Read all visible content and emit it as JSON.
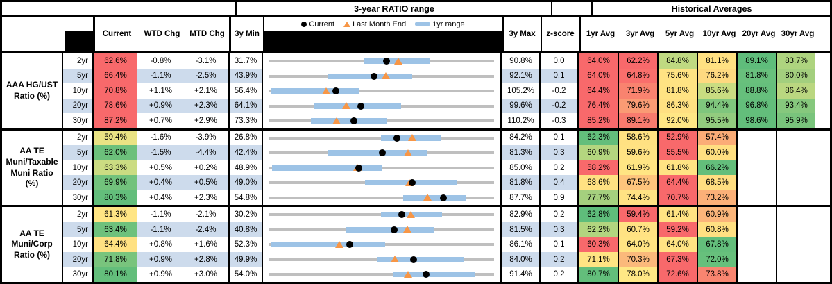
{
  "titles": {
    "chart": "3-year RATIO range",
    "averages": "Historical Averages"
  },
  "legend": {
    "current": "Current",
    "last_month": "Last Month End",
    "range": "1yr range"
  },
  "columns": {
    "current": "Current",
    "wtd": "WTD Chg",
    "mtd": "MTD Chg",
    "min": "3y Min",
    "max": "3y Max",
    "z": "z-score",
    "avgs": [
      "1yr Avg",
      "3yr Avg",
      "5yr Avg",
      "10yr Avg",
      "20yr Avg",
      "30yr Avg"
    ]
  },
  "colors": {
    "stripe": "#CDDBEC",
    "track_gray": "#BFBFBF",
    "range_blue": "#9DC3E6",
    "marker_orange": "#F79646",
    "marker_black": "#000000",
    "heat_red": "#F8696B",
    "heat_yellow": "#FFE383",
    "heat_green": "#63BE7B"
  },
  "chart_data": {
    "type": "table",
    "note": "Each row: current ratio %, WTD/MTD change, 3y min/max, 1yr range bar [low,high], last-month-end (lme), z-score, historical averages [value, color]",
    "groups": [
      {
        "label": "AAA HG/UST Ratio (%)",
        "rows": [
          {
            "tenor": "2yr",
            "cur": 62.6,
            "cur_bg": "#F8696B",
            "wtd": "-0.8%",
            "mtd": "-3.1%",
            "min": 31.7,
            "max": 90.8,
            "z": "0.0",
            "lme": 65.7,
            "bar": [
              56.5,
              73.9
            ],
            "avgs": [
              [
                64.0,
                "#F8696B"
              ],
              [
                62.2,
                "#F8696B"
              ],
              [
                84.8,
                "#BFD981"
              ],
              [
                81.1,
                "#FFE182"
              ],
              [
                89.1,
                "#5FBD7B"
              ],
              [
                83.7,
                "#AED47F"
              ]
            ]
          },
          {
            "tenor": "5yr",
            "cur": 66.4,
            "cur_bg": "#F8696B",
            "wtd": "-1.1%",
            "mtd": "-2.5%",
            "min": 43.9,
            "max": 92.1,
            "z": "0.1",
            "lme": 68.9,
            "bar": [
              56.5,
              74.6
            ],
            "avgs": [
              [
                64.0,
                "#F8696B"
              ],
              [
                64.8,
                "#F96F6C"
              ],
              [
                75.6,
                "#FFE383"
              ],
              [
                76.2,
                "#FED980"
              ],
              [
                81.8,
                "#68C07C"
              ],
              [
                80.0,
                "#A3CF7E"
              ]
            ]
          },
          {
            "tenor": "10yr",
            "cur": 70.8,
            "cur_bg": "#F8696B",
            "wtd": "+1.1%",
            "mtd": "+2.1%",
            "min": 56.4,
            "max": 105.2,
            "z": "-0.2",
            "lme": 68.7,
            "bar": [
              56.7,
              75.8
            ],
            "avgs": [
              [
                64.4,
                "#F8696B"
              ],
              [
                71.9,
                "#F9836F"
              ],
              [
                81.8,
                "#FFE383"
              ],
              [
                85.6,
                "#C9DC81"
              ],
              [
                88.8,
                "#66BF7C"
              ],
              [
                86.4,
                "#BAD780"
              ]
            ]
          },
          {
            "tenor": "20yr",
            "cur": 78.6,
            "cur_bg": "#F8696B",
            "wtd": "+0.9%",
            "mtd": "+2.3%",
            "min": 64.1,
            "max": 99.6,
            "z": "-0.2",
            "lme": 76.3,
            "bar": [
              71.2,
              84.9
            ],
            "avgs": [
              [
                76.4,
                "#F8696B"
              ],
              [
                79.6,
                "#FA9B74"
              ],
              [
                86.3,
                "#FFE082"
              ],
              [
                94.4,
                "#7FC67D"
              ],
              [
                96.8,
                "#63BE7B"
              ],
              [
                93.4,
                "#86C87D"
              ]
            ]
          },
          {
            "tenor": "30yr",
            "cur": 87.2,
            "cur_bg": "#F8696B",
            "wtd": "+0.7%",
            "mtd": "+2.9%",
            "min": 73.3,
            "max": 110.2,
            "z": "-0.3",
            "lme": 84.3,
            "bar": [
              80.1,
              92.5
            ],
            "avgs": [
              [
                85.2,
                "#F8696B"
              ],
              [
                89.1,
                "#F87B6E"
              ],
              [
                92.0,
                "#FFE785"
              ],
              [
                95.5,
                "#92CB7E"
              ],
              [
                98.6,
                "#63BE7B"
              ],
              [
                95.9,
                "#79C47C"
              ]
            ]
          }
        ]
      },
      {
        "label": "AA TE Muni/Taxable Muni Ratio (%)",
        "rows": [
          {
            "tenor": "2yr",
            "cur": 59.4,
            "cur_bg": "#EAE384",
            "wtd": "-1.6%",
            "mtd": "-3.9%",
            "min": 26.8,
            "max": 84.2,
            "z": "0.1",
            "lme": 63.3,
            "bar": [
              55.4,
              70.8
            ],
            "avgs": [
              [
                62.3,
                "#63BE7B"
              ],
              [
                58.6,
                "#FFE182"
              ],
              [
                52.9,
                "#F8696B"
              ],
              [
                57.4,
                "#FBAC77"
              ],
              null,
              null
            ]
          },
          {
            "tenor": "5yr",
            "cur": 62.0,
            "cur_bg": "#6CC07B",
            "wtd": "-1.5%",
            "mtd": "-4.4%",
            "min": 42.4,
            "max": 81.3,
            "z": "0.3",
            "lme": 66.4,
            "bar": [
              52.6,
              69.6
            ],
            "avgs": [
              [
                60.9,
                "#B4D67F"
              ],
              [
                59.6,
                "#FFE283"
              ],
              [
                55.5,
                "#F8696B"
              ],
              [
                60.0,
                "#FFDF81"
              ],
              null,
              null
            ]
          },
          {
            "tenor": "10yr",
            "cur": 63.3,
            "cur_bg": "#CBDC82",
            "wtd": "+0.5%",
            "mtd": "+0.2%",
            "min": 48.9,
            "max": 85.0,
            "z": "0.2",
            "lme": 63.1,
            "bar": [
              49.3,
              66.9
            ],
            "avgs": [
              [
                58.2,
                "#F8696B"
              ],
              [
                61.9,
                "#FFE583"
              ],
              [
                61.8,
                "#FFE383"
              ],
              [
                66.2,
                "#63BE7B"
              ],
              null,
              null
            ]
          },
          {
            "tenor": "20yr",
            "cur": 69.9,
            "cur_bg": "#72C27C",
            "wtd": "+0.4%",
            "mtd": "+0.5%",
            "min": 49.0,
            "max": 81.8,
            "z": "0.4",
            "lme": 69.4,
            "bar": [
              63.0,
              76.3
            ],
            "avgs": [
              [
                68.6,
                "#FFE182"
              ],
              [
                67.5,
                "#FDC47C"
              ],
              [
                64.4,
                "#F8696B"
              ],
              [
                68.5,
                "#FFDE81"
              ],
              null,
              null
            ]
          },
          {
            "tenor": "30yr",
            "cur": 80.3,
            "cur_bg": "#63BE7B",
            "wtd": "+0.4%",
            "mtd": "+2.3%",
            "min": 54.8,
            "max": 87.7,
            "z": "0.9",
            "lme": 78.0,
            "bar": [
              74.4,
              83.6
            ],
            "avgs": [
              [
                77.7,
                "#A5D07E"
              ],
              [
                74.4,
                "#FFE283"
              ],
              [
                70.7,
                "#F8696B"
              ],
              [
                73.2,
                "#FBB078"
              ],
              null,
              null
            ]
          }
        ]
      },
      {
        "label": "AA TE Muni/Corp Ratio (%)",
        "rows": [
          {
            "tenor": "2yr",
            "cur": 61.3,
            "cur_bg": "#FFE584",
            "wtd": "-1.1%",
            "mtd": "-2.1%",
            "min": 30.2,
            "max": 82.9,
            "z": "0.2",
            "lme": 63.4,
            "bar": [
              56.4,
              70.7
            ],
            "avgs": [
              [
                62.8,
                "#5FBD7B"
              ],
              [
                59.4,
                "#F8696B"
              ],
              [
                61.4,
                "#FFE383"
              ],
              [
                60.9,
                "#FBB57A"
              ],
              null,
              null
            ]
          },
          {
            "tenor": "5yr",
            "cur": 63.4,
            "cur_bg": "#6EC17C",
            "wtd": "-1.1%",
            "mtd": "-2.4%",
            "min": 40.8,
            "max": 81.5,
            "z": "0.3",
            "lme": 65.8,
            "bar": [
              54.8,
              70.7
            ],
            "avgs": [
              [
                62.2,
                "#B2D57F"
              ],
              [
                60.7,
                "#FFE283"
              ],
              [
                59.2,
                "#F8696B"
              ],
              [
                60.8,
                "#FFE082"
              ],
              null,
              null
            ]
          },
          {
            "tenor": "10yr",
            "cur": 64.4,
            "cur_bg": "#FFE182",
            "wtd": "+0.8%",
            "mtd": "+1.6%",
            "min": 52.3,
            "max": 86.1,
            "z": "0.1",
            "lme": 62.8,
            "bar": [
              52.5,
              69.7
            ],
            "avgs": [
              [
                60.3,
                "#F8696B"
              ],
              [
                64.0,
                "#FFE483"
              ],
              [
                64.0,
                "#FFE383"
              ],
              [
                67.8,
                "#63BE7B"
              ],
              null,
              null
            ]
          },
          {
            "tenor": "20yr",
            "cur": 71.8,
            "cur_bg": "#79C47D",
            "wtd": "+0.9%",
            "mtd": "+2.8%",
            "min": 49.9,
            "max": 84.0,
            "z": "0.2",
            "lme": 69.0,
            "bar": [
              66.2,
              79.5
            ],
            "avgs": [
              [
                71.1,
                "#FFE483"
              ],
              [
                70.3,
                "#FBB97B"
              ],
              [
                67.3,
                "#F8696B"
              ],
              [
                72.0,
                "#67C07C"
              ],
              null,
              null
            ]
          },
          {
            "tenor": "30yr",
            "cur": 80.1,
            "cur_bg": "#63BE7B",
            "wtd": "+0.9%",
            "mtd": "+3.0%",
            "min": 54.0,
            "max": 91.4,
            "z": "0.2",
            "lme": 77.1,
            "bar": [
              74.7,
              88.2
            ],
            "avgs": [
              [
                80.7,
                "#63BE7B"
              ],
              [
                78.0,
                "#FFE885"
              ],
              [
                72.6,
                "#F8696B"
              ],
              [
                73.8,
                "#F98570"
              ],
              null,
              null
            ]
          }
        ]
      }
    ]
  }
}
